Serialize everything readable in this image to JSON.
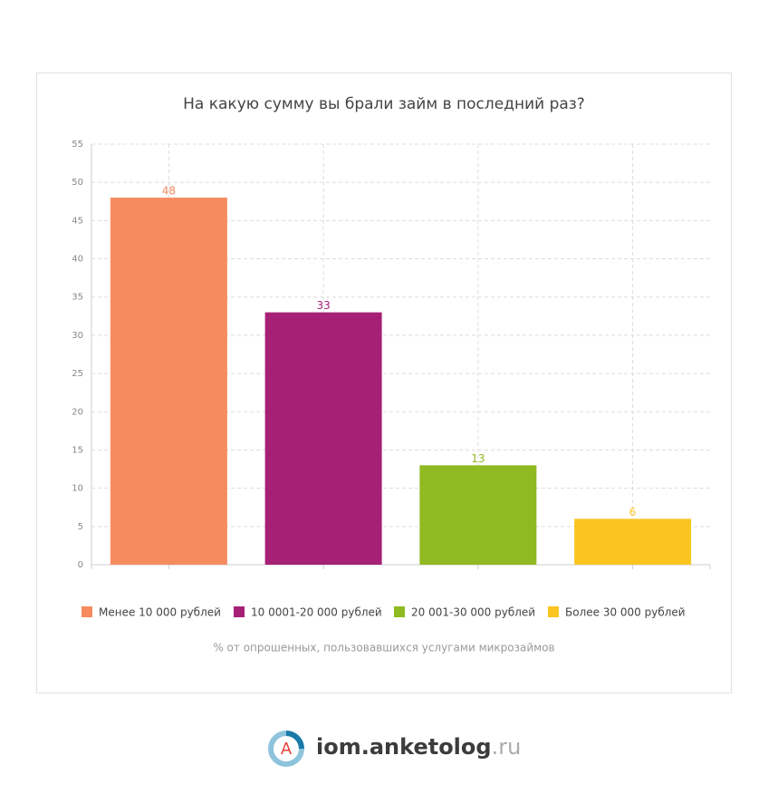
{
  "chart_data": {
    "type": "bar",
    "title": "На какую сумму вы брали займ в последний раз?",
    "categories": [
      "Менее 10 000 рублей",
      "10 0001-20 000 рублей",
      "20 001-30 000 рублей",
      "Более 30 000 рублей"
    ],
    "values": [
      48,
      33,
      13,
      6
    ],
    "colors": [
      "#f68b5f",
      "#a62176",
      "#8fba22",
      "#fbc520"
    ],
    "ylim": [
      0,
      55
    ],
    "yticks": [
      0,
      5,
      10,
      15,
      20,
      25,
      30,
      35,
      40,
      45,
      50,
      55
    ],
    "grid": true,
    "legend": "bottom",
    "note": "% от опрошенных, пользовавшихся услугами микрозаймов"
  },
  "logo": {
    "letter": "A",
    "name": "iom.anketolog",
    "domain": ".ru"
  }
}
